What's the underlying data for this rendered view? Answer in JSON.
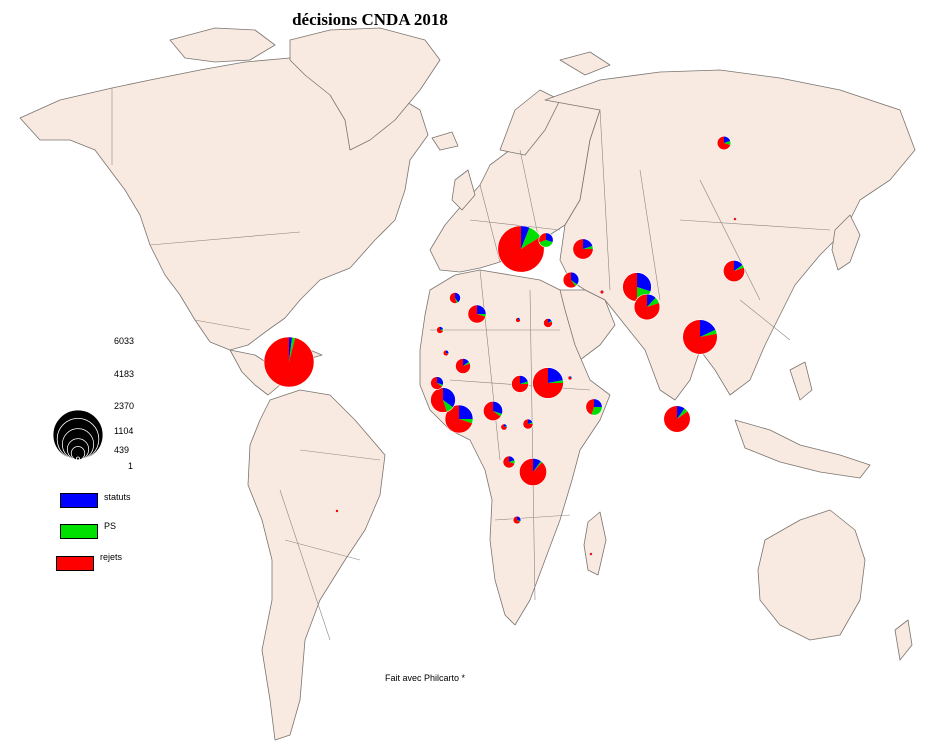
{
  "title": "décisions CNDA 2018",
  "credit": "Fait avec Philcarto *",
  "colors": {
    "land": "#f8eae0",
    "border": "#8c8580",
    "coast": "#7a7470",
    "statuts": "#0000ff",
    "ps": "#00e000",
    "rejets": "#ff0000"
  },
  "legend": {
    "sizes": [
      "6033",
      "4183",
      "2370",
      "1104",
      "439",
      "1"
    ],
    "categories": [
      {
        "label": "statuts",
        "color": "#0000ff"
      },
      {
        "label": "PS",
        "color": "#00e000"
      },
      {
        "label": "rejets",
        "color": "#ff0000"
      }
    ]
  },
  "symbols_data": [
    {
      "total": 6033,
      "statuts": 0.02,
      "ps": 0.02,
      "rejets": 0.96
    },
    {
      "total": 5200,
      "statuts": 0.06,
      "ps": 0.1,
      "rejets": 0.84
    },
    {
      "total": 2900,
      "statuts": 0.18,
      "ps": 0.04,
      "rejets": 0.78
    },
    {
      "total": 2300,
      "statuts": 0.22,
      "ps": 0.03,
      "rejets": 0.75
    },
    {
      "total": 2000,
      "statuts": 0.3,
      "ps": 0.2,
      "rejets": 0.5
    },
    {
      "total": 1900,
      "statuts": 0.25,
      "ps": 0.05,
      "rejets": 0.7
    },
    {
      "total": 1800,
      "statuts": 0.1,
      "ps": 0.02,
      "rejets": 0.88
    },
    {
      "total": 1700,
      "statuts": 0.1,
      "ps": 0.05,
      "rejets": 0.85
    },
    {
      "total": 1600,
      "statuts": 0.12,
      "ps": 0.08,
      "rejets": 0.8
    },
    {
      "total": 1500,
      "statuts": 0.35,
      "ps": 0.1,
      "rejets": 0.55
    },
    {
      "total": 1100,
      "statuts": 0.15,
      "ps": 0.05,
      "rejets": 0.8
    },
    {
      "total": 1000,
      "statuts": 0.2,
      "ps": 0.05,
      "rejets": 0.75
    },
    {
      "total": 900,
      "statuts": 0.3,
      "ps": 0.05,
      "rejets": 0.65
    },
    {
      "total": 800,
      "statuts": 0.25,
      "ps": 0.05,
      "rejets": 0.7
    },
    {
      "total": 700,
      "statuts": 0.2,
      "ps": 0.05,
      "rejets": 0.75
    },
    {
      "total": 650,
      "statuts": 0.25,
      "ps": 0.3,
      "rejets": 0.45
    },
    {
      "total": 600,
      "statuts": 0.35,
      "ps": 0.05,
      "rejets": 0.6
    },
    {
      "total": 550,
      "statuts": 0.15,
      "ps": 0.05,
      "rejets": 0.8
    },
    {
      "total": 500,
      "statuts": 0.3,
      "ps": 0.4,
      "rejets": 0.3
    },
    {
      "total": 450,
      "statuts": 0.2,
      "ps": 0.1,
      "rejets": 0.7
    },
    {
      "total": 400,
      "statuts": 0.3,
      "ps": 0.05,
      "rejets": 0.65
    },
    {
      "total": 350,
      "statuts": 0.2,
      "ps": 0.1,
      "rejets": 0.7
    },
    {
      "total": 300,
      "statuts": 0.4,
      "ps": 0.05,
      "rejets": 0.55
    },
    {
      "total": 250,
      "statuts": 0.2,
      "ps": 0.05,
      "rejets": 0.75
    },
    {
      "total": 200,
      "statuts": 0.15,
      "ps": 0.05,
      "rejets": 0.8
    },
    {
      "total": 150,
      "statuts": 0.3,
      "ps": 0.05,
      "rejets": 0.65
    },
    {
      "total": 120,
      "statuts": 0.2,
      "ps": 0.1,
      "rejets": 0.7
    },
    {
      "total": 100,
      "statuts": 0.2,
      "ps": 0.05,
      "rejets": 0.75
    },
    {
      "total": 80,
      "statuts": 0.3,
      "ps": 0.05,
      "rejets": 0.65
    },
    {
      "total": 60,
      "statuts": 0.2,
      "ps": 0.05,
      "rejets": 0.75
    },
    {
      "total": 40,
      "statuts": 0.2,
      "ps": 0.05,
      "rejets": 0.75
    },
    {
      "total": 25,
      "statuts": 0.1,
      "ps": 0.05,
      "rejets": 0.85
    },
    {
      "total": 15,
      "statuts": 0.1,
      "ps": 0.05,
      "rejets": 0.85
    },
    {
      "total": 8,
      "statuts": 0.1,
      "ps": 0.05,
      "rejets": 0.85
    },
    {
      "total": 4,
      "statuts": 0.0,
      "ps": 0.0,
      "rejets": 1.0
    }
  ]
}
